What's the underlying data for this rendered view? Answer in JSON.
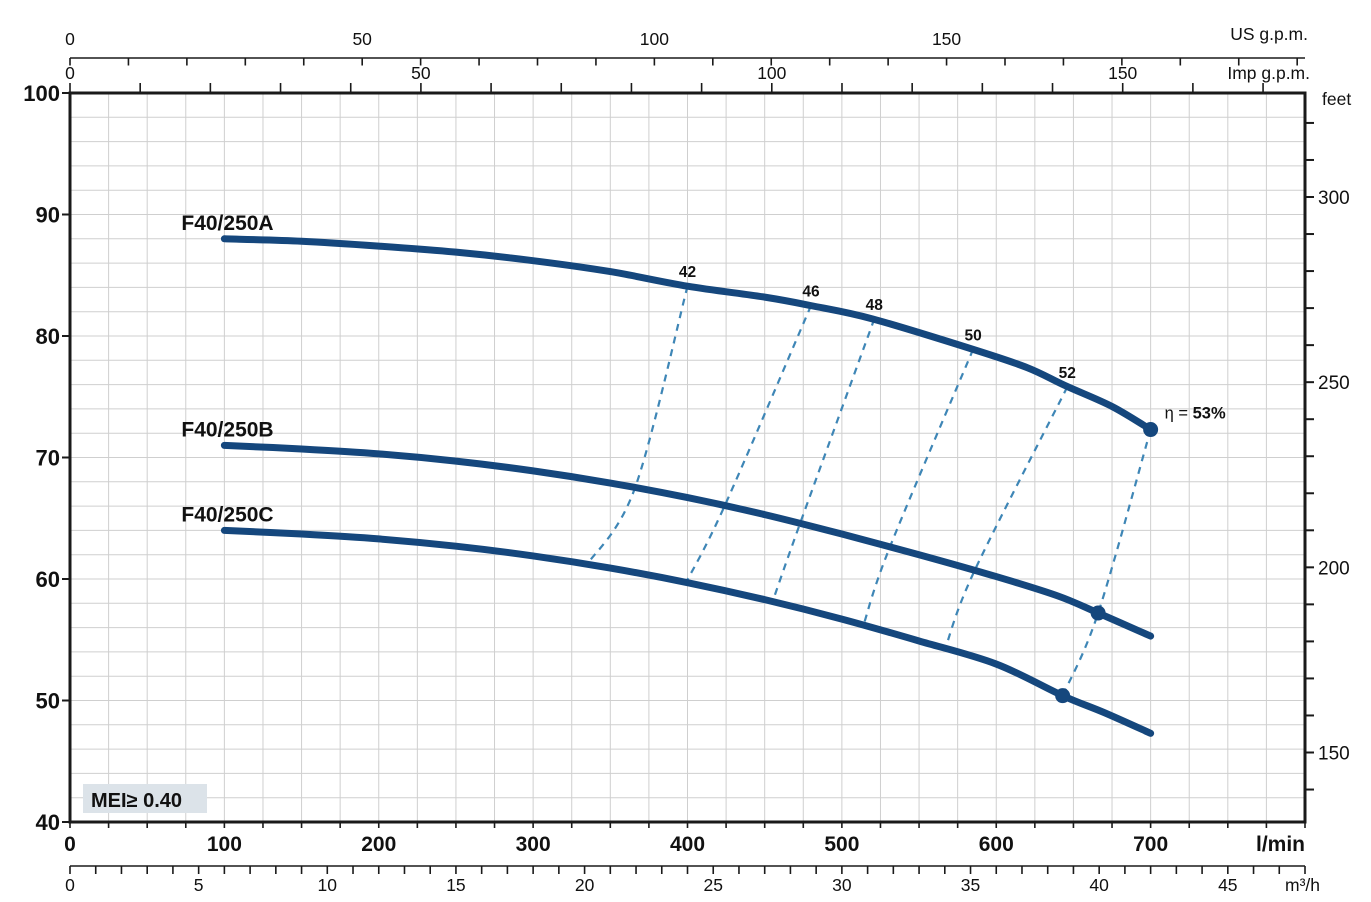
{
  "chart_data": {
    "type": "line",
    "description": "Pump performance curves: head (m / feet) versus flow (l/min, m3/h, US g.p.m., Imp g.p.m.)",
    "axes": {
      "us_gpm": {
        "unit_label": "US g.p.m.",
        "tick_labels": [
          0,
          50,
          100,
          150
        ],
        "minor_step": 10,
        "lmin_per_unit": 3.78541
      },
      "imp_gpm": {
        "unit_label": "Imp g.p.m.",
        "tick_labels": [
          0,
          50,
          100,
          150
        ],
        "minor_step": 10,
        "lmin_per_unit": 4.54609
      },
      "lmin": {
        "unit_label": "l/min",
        "tick_labels": [
          0,
          100,
          200,
          300,
          400,
          500,
          600,
          700
        ],
        "minor_step": 25,
        "range": [
          0,
          800
        ]
      },
      "m3h": {
        "unit_label": "m³/h",
        "tick_labels": [
          0,
          5,
          10,
          15,
          20,
          25,
          30,
          35,
          40,
          45
        ],
        "minor_step": 1,
        "lmin_per_unit": 16.6667
      },
      "head_m": {
        "tick_labels": [
          40,
          50,
          60,
          70,
          80,
          90,
          100
        ],
        "minor_step": 2,
        "range": [
          40,
          100
        ]
      },
      "feet": {
        "unit_label": "feet",
        "tick_labels": [
          150,
          200,
          250,
          300
        ],
        "minor_step": 10,
        "m_per_unit": 0.3048
      }
    },
    "grid": {
      "on": true,
      "x_step_lmin": 25,
      "y_step_m": 2
    },
    "series": [
      {
        "name": "F40/250A",
        "points": [
          [
            100,
            88
          ],
          [
            150,
            87.8
          ],
          [
            200,
            87.4
          ],
          [
            250,
            86.9
          ],
          [
            300,
            86.2
          ],
          [
            350,
            85.3
          ],
          [
            400,
            84.1
          ],
          [
            450,
            83.2
          ],
          [
            480,
            82.5
          ],
          [
            520,
            81.4
          ],
          [
            585,
            78.9
          ],
          [
            620,
            77.4
          ],
          [
            645,
            75.9
          ],
          [
            675,
            74.2
          ],
          [
            700,
            72.3
          ]
        ]
      },
      {
        "name": "F40/250B",
        "points": [
          [
            100,
            71
          ],
          [
            150,
            70.7
          ],
          [
            200,
            70.3
          ],
          [
            250,
            69.7
          ],
          [
            300,
            68.9
          ],
          [
            350,
            67.9
          ],
          [
            400,
            66.7
          ],
          [
            450,
            65.3
          ],
          [
            500,
            63.7
          ],
          [
            550,
            62
          ],
          [
            600,
            60.2
          ],
          [
            640,
            58.6
          ],
          [
            666,
            57.2
          ],
          [
            700,
            55.3
          ]
        ]
      },
      {
        "name": "F40/250C",
        "points": [
          [
            100,
            64
          ],
          [
            150,
            63.7
          ],
          [
            200,
            63.3
          ],
          [
            250,
            62.7
          ],
          [
            300,
            61.9
          ],
          [
            350,
            60.9
          ],
          [
            400,
            59.7
          ],
          [
            450,
            58.3
          ],
          [
            500,
            56.7
          ],
          [
            550,
            54.9
          ],
          [
            600,
            53
          ],
          [
            643,
            50.4
          ],
          [
            670,
            49
          ],
          [
            700,
            47.3
          ]
        ]
      }
    ],
    "efficiency_lines": [
      {
        "label": "42",
        "points": [
          [
            400,
            84.1
          ],
          [
            366,
            67.5
          ],
          [
            335,
            61.2
          ]
        ]
      },
      {
        "label": "46",
        "points": [
          [
            480,
            82.5
          ],
          [
            424,
            66.0
          ],
          [
            399,
            59.7
          ]
        ]
      },
      {
        "label": "48",
        "points": [
          [
            521,
            81.4
          ],
          [
            473,
            64.6
          ],
          [
            455,
            58.1
          ]
        ]
      },
      {
        "label": "50",
        "points": [
          [
            585,
            78.9
          ],
          [
            531,
            62.6
          ],
          [
            514,
            56.2
          ]
        ]
      },
      {
        "label": "52",
        "points": [
          [
            646,
            75.8
          ],
          [
            586,
            60.7
          ],
          [
            567,
            54.3
          ]
        ]
      },
      {
        "label": "",
        "points": [
          [
            700,
            72.3
          ],
          [
            666,
            57.2
          ],
          [
            643,
            50.4
          ]
        ]
      }
    ],
    "best_efficiency_points": [
      [
        700,
        72.3
      ],
      [
        666,
        57.2
      ],
      [
        643,
        50.4
      ]
    ],
    "eta_label": {
      "prefix": "η = ",
      "value": "53%"
    },
    "mei_label": "MEI≥ 0.40"
  },
  "colors": {
    "curve": "#15477d",
    "efficiency": "#3e86b6",
    "grid": "#cfcfcf",
    "axis": "#1a1a1a",
    "mei_bg": "#dce3e9",
    "text": "#111111"
  }
}
